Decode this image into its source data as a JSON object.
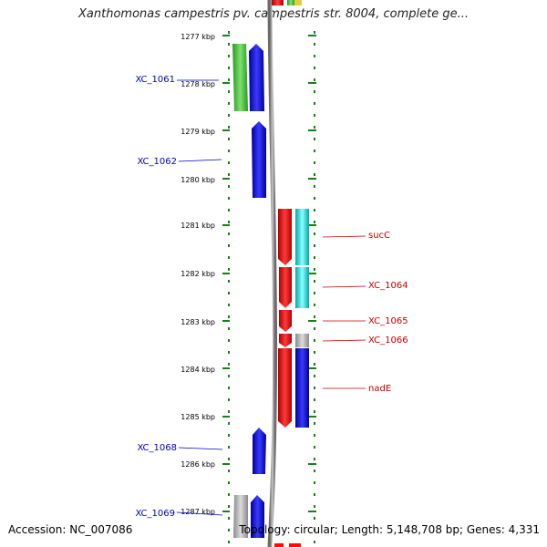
{
  "title": "Xanthomonas campestris pv. campestris str. 8004, complete ge...",
  "footer": {
    "accession": "Accession: NC_007086",
    "stats": "Topology: circular; Length: 5,148,708 bp; Genes: 4,331"
  },
  "colors": {
    "ruler": "#1a7f1a",
    "left_label": "#0000c8",
    "right_label": "#c80000",
    "backbone": "#8c8c8c",
    "green": "#44c037",
    "blue": "#0a0ae6",
    "red": "#ff0a0a",
    "cyan": "#18e6e6",
    "gray": "#b4b4b4"
  },
  "ticks": [
    "1277 kbp",
    "1278 kbp",
    "1279 kbp",
    "1280 kbp",
    "1281 kbp",
    "1282 kbp",
    "1283 kbp",
    "1284 kbp",
    "1285 kbp",
    "1286 kbp",
    "1287 kbp"
  ],
  "left_labels": [
    "XC_1061",
    "XC_1062",
    "XC_1068",
    "XC_1069"
  ],
  "right_labels": [
    "sucC",
    "XC_1064",
    "XC_1065",
    "XC_1066",
    "nadE"
  ]
}
